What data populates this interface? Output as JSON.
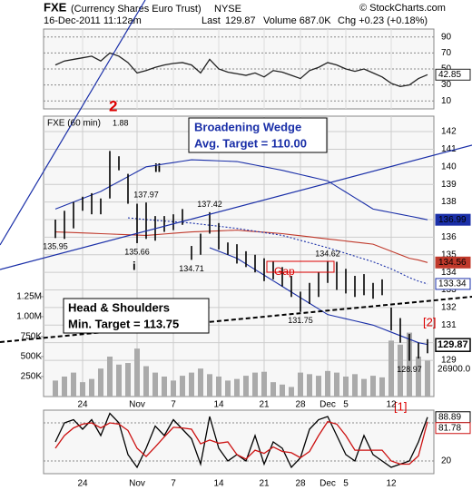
{
  "header": {
    "symbol": "FXE",
    "name": "(Currency Shares Euro Trust)",
    "exchange": "NYSE",
    "datetime": "16-Dec-2011 11:12am",
    "volume": "Volume 687.0K",
    "chg": "Chg +0.23 (+0.18%)",
    "copyright": "© StockCharts.com"
  },
  "chart_data": [
    {
      "type": "line",
      "ylim": [
        0,
        100
      ],
      "yticks": [
        10,
        30,
        50,
        70,
        90
      ],
      "series": [
        {
          "color": "#222",
          "values": [
            55,
            60,
            62,
            64,
            66,
            60,
            70,
            66,
            58,
            45,
            48,
            52,
            55,
            57,
            58,
            55,
            45,
            62,
            50,
            46,
            44,
            42,
            45,
            40,
            48,
            46,
            42,
            38,
            48,
            52,
            58,
            55,
            50,
            47,
            50,
            45,
            40,
            32,
            28,
            30,
            38,
            42.85
          ]
        }
      ]
    },
    {
      "type": "ohlc",
      "title": "FXE (60 min)",
      "last_label": "Last",
      "last": 129.87,
      "categories": [
        null,
        null,
        null,
        "24",
        null,
        null,
        null,
        null,
        null,
        "Nov",
        null,
        null,
        null,
        "7",
        null,
        null,
        null,
        null,
        "14",
        null,
        null,
        null,
        null,
        "21",
        null,
        null,
        null,
        "28",
        null,
        null,
        "Dec",
        null,
        "5",
        null,
        null,
        null,
        null,
        "12",
        null,
        null,
        null,
        null
      ],
      "high": [
        137.0,
        137.5,
        138.0,
        138.3,
        138.5,
        138.2,
        140.9,
        140.6,
        139.6,
        137.9,
        137.97,
        137.2,
        137.2,
        137.3,
        137.6,
        135.5,
        136.2,
        137.42,
        136.8,
        135.7,
        135.6,
        135.2,
        135.0,
        134.8,
        134.6,
        134.3,
        133.8,
        132.9,
        133.4,
        134.0,
        134.62,
        134.6,
        134.2,
        133.8,
        133.9,
        133.4,
        133.6,
        132.0,
        131.4,
        130.5,
        130.0,
        130.2
      ],
      "low": [
        135.95,
        135.9,
        136.5,
        137.5,
        137.3,
        137.3,
        138.2,
        139.8,
        137.9,
        135.66,
        135.9,
        135.8,
        136.3,
        136.4,
        136.7,
        134.71,
        135.0,
        136.2,
        135.3,
        135.0,
        134.5,
        134.3,
        134.0,
        133.5,
        133.6,
        133.2,
        132.6,
        131.75,
        132.2,
        132.6,
        133.4,
        133.0,
        132.8,
        132.6,
        132.7,
        132.5,
        132.7,
        130.7,
        130.0,
        128.97,
        129.1,
        129.4
      ],
      "color": "#000",
      "ylim": [
        126.94,
        142.88
      ],
      "yticks": [
        129,
        130,
        131,
        132,
        133,
        134,
        135,
        136,
        137,
        138,
        139,
        140,
        141,
        142
      ],
      "overlays": [
        {
          "color": "#1a2fa8",
          "dash": false,
          "values": [
            137.6,
            137.8,
            138.0,
            138.2,
            138.4,
            138.6,
            138.88,
            139.16,
            139.44,
            139.72,
            140.0,
            140.08,
            140.16,
            140.24,
            140.32,
            140.4,
            140.38,
            140.36,
            140.34,
            140.32,
            140.3,
            140.2,
            140.1,
            140.0,
            139.9,
            139.8,
            139.68,
            139.56,
            139.44,
            139.32,
            139.2,
            138.88,
            138.56,
            138.24,
            137.92,
            137.6,
            137.5,
            137.4,
            137.3,
            137.2,
            137.1,
            136.99
          ]
        },
        {
          "color": "#1a2fa8",
          "dash": false,
          "values": [
            null,
            null,
            null,
            null,
            null,
            null,
            null,
            null,
            null,
            null,
            null,
            null,
            null,
            null,
            null,
            null,
            null,
            135.4,
            135.2,
            135.0,
            134.8,
            134.48,
            134.16,
            133.84,
            133.52,
            133.2,
            132.88,
            132.56,
            132.24,
            131.92,
            131.6,
            131.48,
            131.36,
            131.24,
            131.12,
            131.0,
            130.8,
            130.6,
            130.4,
            130.2,
            130.0,
            129.9
          ]
        },
        {
          "color": "#c0392b",
          "dash": false,
          "values": [
            136.3,
            136.28,
            136.26,
            136.24,
            136.22,
            136.2,
            136.18,
            136.16,
            136.14,
            136.12,
            136.1,
            136.14,
            136.18,
            136.22,
            136.26,
            136.3,
            136.32,
            136.34,
            136.36,
            136.38,
            136.4,
            136.36,
            136.32,
            136.28,
            136.24,
            136.2,
            136.14,
            136.08,
            136.02,
            135.96,
            135.9,
            135.84,
            135.78,
            135.72,
            135.66,
            135.6,
            135.4,
            135.2,
            135.0,
            134.8,
            134.7,
            134.56
          ]
        },
        {
          "color": "#1a2fa8",
          "dash": true,
          "values": [
            null,
            null,
            null,
            null,
            null,
            null,
            null,
            null,
            137.1,
            137.05,
            137.0,
            136.96,
            136.92,
            136.88,
            136.84,
            136.8,
            136.74,
            136.68,
            136.62,
            136.56,
            136.5,
            136.42,
            136.34,
            136.26,
            136.18,
            136.1,
            135.96,
            135.82,
            135.68,
            135.54,
            135.4,
            135.24,
            135.08,
            134.92,
            134.76,
            134.6,
            134.4,
            134.2,
            133.95,
            133.7,
            133.5,
            133.34
          ]
        }
      ],
      "volume": {
        "color": "#aaa",
        "ylim": [
          0,
          3510000
        ],
        "yticks": [
          {
            "value": 250000,
            "label": "250K"
          },
          {
            "value": 500000,
            "label": "500K"
          },
          {
            "value": 750000,
            "label": "750K"
          },
          {
            "value": 1000000,
            "label": "1.00M"
          },
          {
            "value": 1250000,
            "label": "1.25M"
          }
        ],
        "values": [
          200000,
          250000,
          300000,
          180000,
          220000,
          350000,
          500000,
          400000,
          420000,
          600000,
          380000,
          300000,
          250000,
          200000,
          260000,
          300000,
          350000,
          280000,
          250000,
          200000,
          220000,
          260000,
          300000,
          310000,
          180000,
          150000,
          120000,
          300000,
          280000,
          260000,
          320000,
          300000,
          250000,
          280000,
          220000,
          260000,
          240000,
          700000,
          650000,
          800000,
          500000,
          450000
        ],
        "scale_label": "26900.0"
      },
      "annotations": {
        "wave2": "2",
        "wave_ii": "ii",
        "wave_i": "i",
        "gap": "Gap",
        "wave1b": "[1]",
        "wave2b": "[2]",
        "ratio": "1.88",
        "wedge_title": "Broadening Wedge",
        "wedge_target": "Avg. Target = 110.00",
        "hs_title": "Head & Shoulders",
        "hs_target": "Min. Target = 113.75"
      }
    },
    {
      "type": "line",
      "ylim": [
        0,
        100
      ],
      "yticks": [
        20,
        80
      ],
      "series": [
        {
          "color": "#000",
          "values": [
            50,
            80,
            85,
            70,
            85,
            60,
            95,
            80,
            30,
            10,
            40,
            75,
            60,
            85,
            70,
            55,
            15,
            90,
            40,
            20,
            30,
            20,
            60,
            15,
            50,
            40,
            10,
            25,
            70,
            85,
            90,
            60,
            30,
            20,
            60,
            30,
            20,
            10,
            15,
            20,
            50,
            88.89
          ]
        },
        {
          "color": "#cc1111",
          "values": [
            40,
            60,
            72,
            78,
            80,
            72,
            80,
            78,
            68,
            40,
            27,
            42,
            58,
            73,
            72,
            70,
            47,
            53,
            48,
            50,
            30,
            23,
            37,
            32,
            42,
            35,
            33,
            25,
            35,
            60,
            82,
            78,
            60,
            37,
            37,
            37,
            37,
            20,
            15,
            15,
            28,
            81.78
          ]
        }
      ]
    }
  ]
}
